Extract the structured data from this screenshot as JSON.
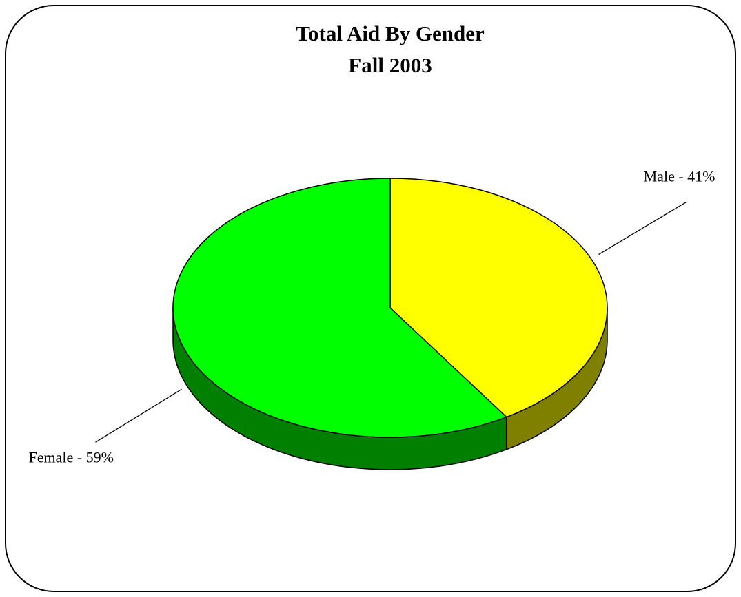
{
  "chart_data": {
    "type": "pie",
    "title": "Total Aid By Gender",
    "subtitle": "Fall 2003",
    "values": [
      41,
      59
    ],
    "value_labels": [
      "Male - 41%",
      "Female - 59%"
    ],
    "colors": [
      "#ffff00",
      "#00ff00"
    ]
  }
}
